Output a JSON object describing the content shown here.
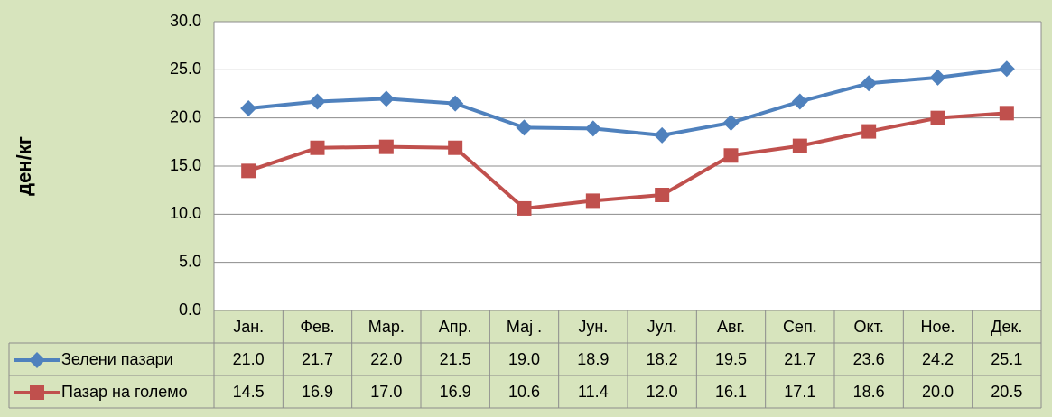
{
  "chart_data": {
    "type": "line",
    "y_label": "ден/кг",
    "categories": [
      "Јан.",
      "Фев.",
      "Мар.",
      "Апр.",
      "Мај .",
      "Јун.",
      "Јул.",
      "Авг.",
      "Сеп.",
      "Окт.",
      "Ное.",
      "Дек."
    ],
    "series": [
      {
        "name": "Зелени пазари",
        "color": "#4f81bd",
        "marker": "diamond",
        "values": [
          21.0,
          21.7,
          22.0,
          21.5,
          19.0,
          18.9,
          18.2,
          19.5,
          21.7,
          23.6,
          24.2,
          25.1
        ],
        "value_labels": [
          "21.0",
          "21.7",
          "22.0",
          "21.5",
          "19.0",
          "18.9",
          "18.2",
          "19.5",
          "21.7",
          "23.6",
          "24.2",
          "25.1"
        ]
      },
      {
        "name": "Пазар на големо",
        "color": "#c0504d",
        "marker": "square",
        "values": [
          14.5,
          16.9,
          17.0,
          16.9,
          10.6,
          11.4,
          12.0,
          16.1,
          17.1,
          18.6,
          20.0,
          20.5
        ],
        "value_labels": [
          "14.5",
          "16.9",
          "17.0",
          "16.9",
          "10.6",
          "11.4",
          "12.0",
          "16.1",
          "17.1",
          "18.6",
          "20.0",
          "20.5"
        ]
      }
    ],
    "ylim": [
      0,
      30
    ],
    "yticks": [
      {
        "value": 0,
        "label": "0.0"
      },
      {
        "value": 5,
        "label": "5.0"
      },
      {
        "value": 10,
        "label": "10.0"
      },
      {
        "value": 15,
        "label": "15.0"
      },
      {
        "value": 20,
        "label": "20.0"
      },
      {
        "value": 25,
        "label": "25.0"
      },
      {
        "value": 30,
        "label": "30.0"
      }
    ],
    "grid": true
  }
}
